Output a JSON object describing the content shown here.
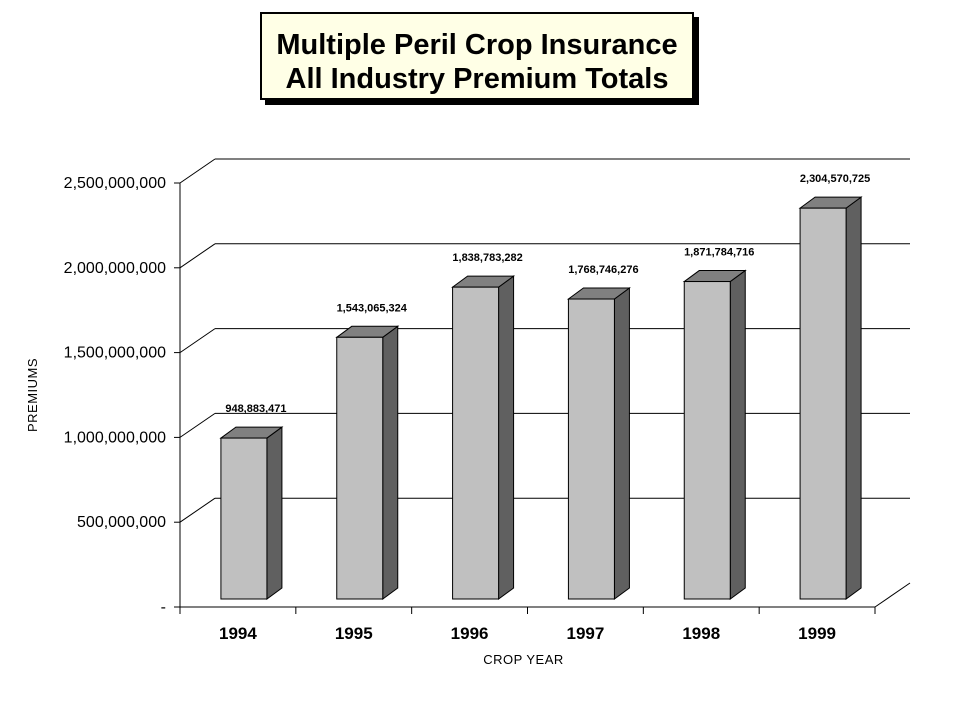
{
  "chart_data": {
    "type": "bar",
    "title_lines": [
      "Multiple Peril Crop Insurance",
      "All Industry  Premium Totals"
    ],
    "categories": [
      "1994",
      "1995",
      "1996",
      "1997",
      "1998",
      "1999"
    ],
    "values": [
      948883471,
      1543065324,
      1838783282,
      1768746276,
      1871784716,
      2304570725
    ],
    "data_labels": [
      "948,883,471",
      "1,543,065,324",
      "1,838,783,282",
      "1,768,746,276",
      "1,871,784,716",
      "2,304,570,725"
    ],
    "xlabel": "CROP YEAR",
    "ylabel": "PREMIUMS",
    "ylim": [
      0,
      2500000000
    ],
    "yticks": [
      0,
      500000000,
      1000000000,
      1500000000,
      2000000000,
      2500000000
    ],
    "ytick_labels": [
      "-",
      "500,000,000",
      "1,000,000,000",
      "1,500,000,000",
      "2,000,000,000",
      "2,500,000,000"
    ],
    "grid": true,
    "style": "3d-column",
    "colors": {
      "bar_front": "#c0c0c0",
      "bar_side": "#606060",
      "bar_top": "#808080",
      "outline": "#000000",
      "title_bg": "#ffffe6"
    }
  }
}
